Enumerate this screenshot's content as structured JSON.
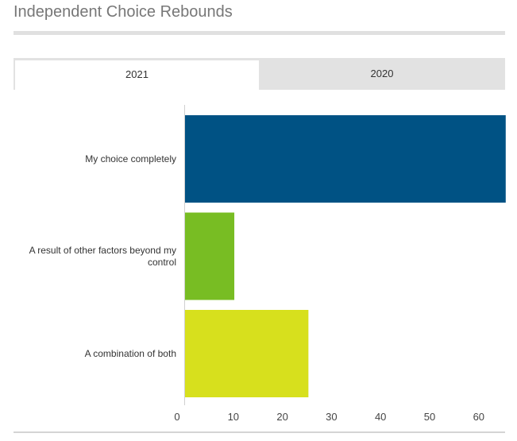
{
  "title": "Independent Choice Rebounds",
  "tabs": [
    {
      "label": "2021",
      "active": true
    },
    {
      "label": "2020",
      "active": false
    }
  ],
  "chart_data": {
    "type": "bar",
    "orientation": "horizontal",
    "title": "Independent Choice Rebounds",
    "categories": [
      "My choice completely",
      "A result of other factors beyond my control",
      "A combination of both"
    ],
    "category_lines": [
      [
        "My choice completely"
      ],
      [
        "A result of other factors beyond my",
        "control"
      ],
      [
        "A combination of both"
      ]
    ],
    "values": [
      65.5,
      10.2,
      25.3
    ],
    "colors": [
      "#005284",
      "#78bd23",
      "#d7e01d"
    ],
    "xlim": [
      0,
      65
    ],
    "ticks": [
      0,
      10,
      20,
      30,
      40,
      50,
      60
    ],
    "xlabel": "",
    "ylabel": "",
    "grid": false
  }
}
